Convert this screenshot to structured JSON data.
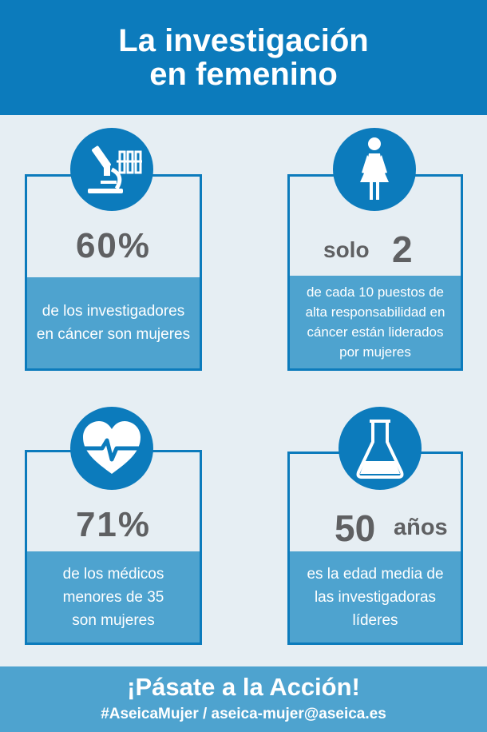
{
  "header": {
    "title_line1": "La investigación",
    "title_line2": "en femenino"
  },
  "stats": {
    "researchers": {
      "value": "60%",
      "desc_line1": "de los investigadores",
      "desc_line2": "en cáncer son mujeres",
      "icon": "microscope-icon"
    },
    "leadership": {
      "prefix": "solo",
      "value": "2",
      "desc_line1": "de cada 10 puestos de",
      "desc_line2": "alta responsabilidad en",
      "desc_line3": "cáncer están liderados",
      "desc_line4": "por mujeres",
      "icon": "woman-icon"
    },
    "doctors": {
      "value": "71%",
      "desc_line1": "de los médicos",
      "desc_line2": "menores de 35",
      "desc_line3": "son mujeres",
      "icon": "heartbeat-icon"
    },
    "age": {
      "value": "50",
      "unit": "años",
      "desc_line1": "es la edad media de",
      "desc_line2": "las investigadoras",
      "desc_line3": "líderes",
      "icon": "flask-icon"
    }
  },
  "footer": {
    "cta": "¡Pásate a la Acción!",
    "contact": "#AseicaMujer / aseica-mujer@aseica.es"
  },
  "colors": {
    "primary": "#0c7bbc",
    "panel": "#4ea3cf",
    "background": "#e6eef3",
    "number": "#5f6062"
  }
}
